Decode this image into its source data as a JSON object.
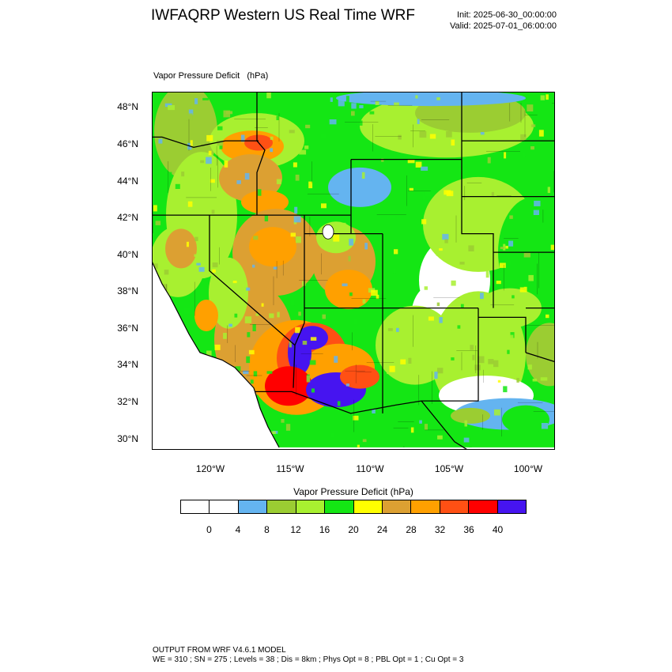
{
  "header": {
    "title": "IWFAQRP Western US Real Time WRF",
    "init": "Init: 2025-06-30_00:00:00",
    "valid": "Valid: 2025-07-01_06:00:00"
  },
  "field_label": "Vapor Pressure Deficit   (hPa)",
  "lat_labels": [
    "48°N",
    "46°N",
    "44°N",
    "42°N",
    "40°N",
    "38°N",
    "36°N",
    "34°N",
    "32°N",
    "30°N"
  ],
  "lon_labels": [
    "120°W",
    "115°W",
    "110°W",
    "105°W",
    "100°W"
  ],
  "colorbar": {
    "title": "Vapor Pressure Deficit  (hPa)",
    "labels": [
      "0",
      "4",
      "8",
      "12",
      "16",
      "20",
      "24",
      "28",
      "32",
      "36",
      "40"
    ],
    "colors": [
      "#ffffff",
      "#ffffff",
      "#64b4f0",
      "#9bcd32",
      "#a8f030",
      "#14e614",
      "#ffff00",
      "#dca032",
      "#ffa000",
      "#ff5014",
      "#ff0000",
      "#4614f0"
    ]
  },
  "footer": {
    "line1": "OUTPUT FROM WRF V4.6.1 MODEL",
    "line2": "WE = 310 ; SN = 275 ; Levels = 38 ; Dis = 8km ; Phys Opt = 8 ; PBL Opt = 1 ; Cu Opt = 3"
  }
}
